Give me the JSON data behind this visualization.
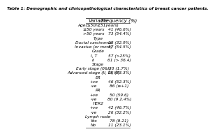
{
  "title": "Table 1: Demographic and clinicopathological characteristics of breast cancer patients.",
  "col1_header": "Variable",
  "col2_header": "Frequency (%)",
  "rows": [
    [
      "Age(≤50/≥51years)",
      "",
      true
    ],
    [
      "≤50 years",
      "41 (46.6%)",
      false
    ],
    [
      ">50 years",
      "73 (54.4%)",
      false
    ],
    [
      "Type",
      "",
      true
    ],
    [
      "Ductal carcinoma",
      "28 (32.9%)",
      false
    ],
    [
      "Invasive (or more)",
      "57 (54.5%)",
      false
    ],
    [
      "Grade",
      "",
      true
    ],
    [
      "I, T",
      "57 (>25%)",
      false
    ],
    [
      "II",
      "61 (> 36.4)",
      false
    ],
    [
      "Stage",
      "",
      true
    ],
    [
      "Early stage (0&I)",
      "30 (1.7%)",
      false
    ],
    [
      "Advanced stage (II, III, IV)",
      "26 (53.3%)",
      false
    ],
    [
      "ER",
      "",
      true
    ],
    [
      "+ve",
      "46 (52.3%)",
      false
    ],
    [
      "-ve",
      "86 (w+1)",
      false
    ],
    [
      "PR",
      "",
      true
    ],
    [
      "+ve",
      "50 (59.6)",
      false
    ],
    [
      "-ve",
      "80 (9 2.4%)",
      false
    ],
    [
      "HER2",
      "",
      true
    ],
    [
      "+ve",
      "42 (46.7%)",
      false
    ],
    [
      "-ve",
      "26 (32.2%)",
      false
    ],
    [
      "Lymph node",
      "",
      true
    ],
    [
      "Yes",
      "78 (8.21)",
      false
    ],
    [
      "No",
      "11 (23.1%)",
      false
    ]
  ],
  "bg_color": "#ffffff",
  "line_color": "#333333",
  "title_fontsize": 4.2,
  "header_fontsize": 5.0,
  "row_fontsize": 4.2,
  "fig_width": 2.0,
  "fig_height": 1.82
}
